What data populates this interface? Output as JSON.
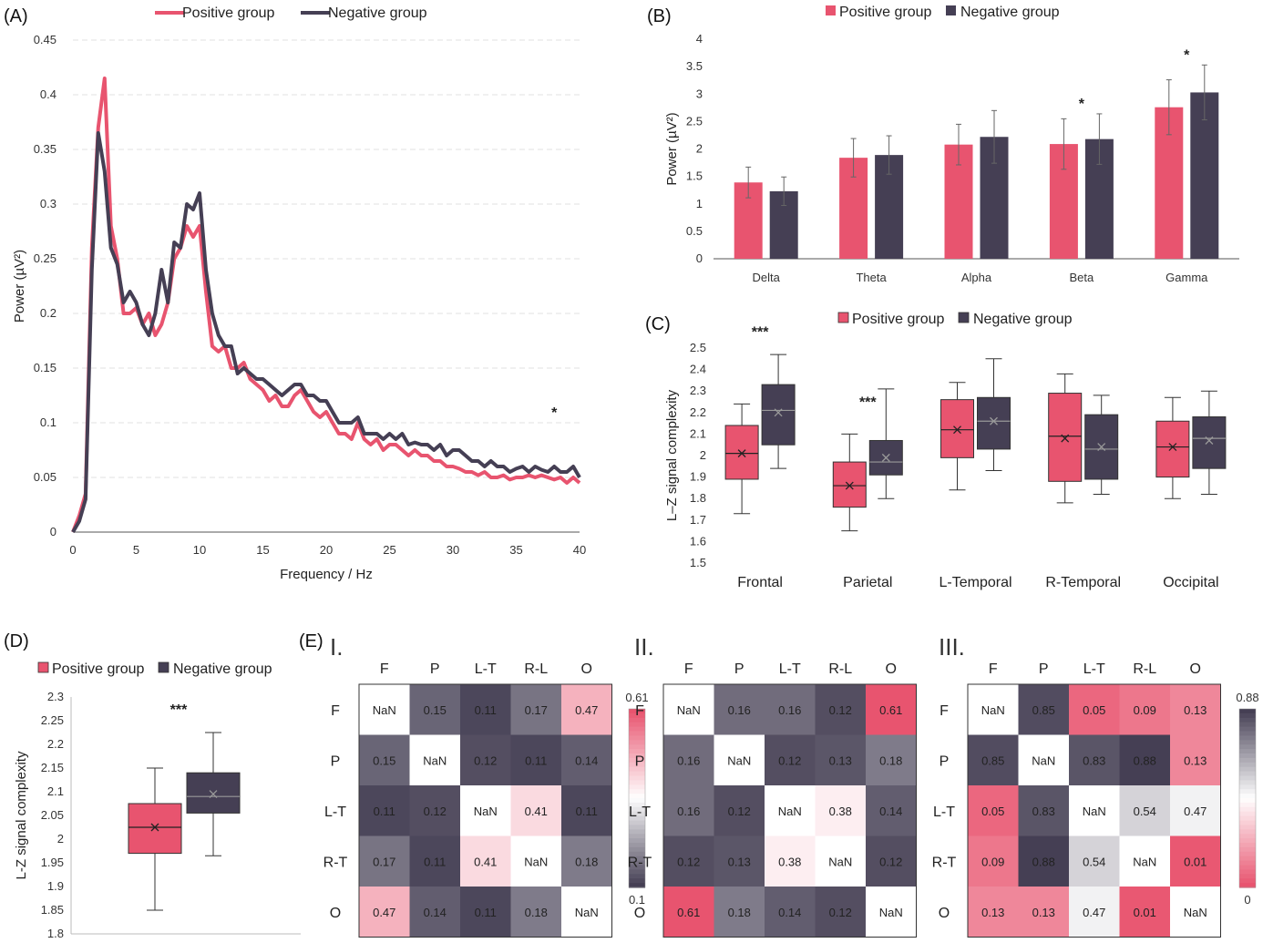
{
  "colors": {
    "positive": "#e8546f",
    "negative": "#453f54",
    "grid": "#e0e0e0",
    "axis": "#555555"
  },
  "panels": {
    "A": "(A)",
    "B": "(B)",
    "C": "(C)",
    "D": "(D)",
    "E": "(E)"
  },
  "legend": {
    "positive": "Positive group",
    "negative": "Negative group"
  },
  "chart_data": [
    {
      "id": "A",
      "type": "line",
      "xlabel": "Frequency / Hz",
      "ylabel": "Power (µV²)",
      "xlim": [
        0,
        40
      ],
      "ylim": [
        0,
        0.45
      ],
      "xticks": [
        0,
        5,
        10,
        15,
        20,
        25,
        30,
        35,
        40
      ],
      "yticks": [
        0,
        0.05,
        0.1,
        0.15,
        0.2,
        0.25,
        0.3,
        0.35,
        0.4,
        0.45
      ],
      "grid": "horizontal dashed",
      "legend": "top",
      "annotations": [
        {
          "text": "*",
          "x": 38,
          "y": 0.11
        }
      ],
      "series": [
        {
          "name": "Positive group",
          "x": [
            0,
            0.5,
            1,
            1.5,
            2,
            2.5,
            3,
            3.5,
            4,
            4.5,
            5,
            5.5,
            6,
            6.5,
            7,
            7.5,
            8,
            8.5,
            9,
            9.5,
            10,
            10.5,
            11,
            11.5,
            12,
            12.5,
            13,
            13.5,
            14,
            14.5,
            15,
            15.5,
            16,
            16.5,
            17,
            17.5,
            18,
            18.5,
            19,
            19.5,
            20,
            20.5,
            21,
            21.5,
            22,
            22.5,
            23,
            23.5,
            24,
            24.5,
            25,
            25.5,
            26,
            26.5,
            27,
            27.5,
            28,
            28.5,
            29,
            29.5,
            30,
            30.5,
            31,
            31.5,
            32,
            32.5,
            33,
            33.5,
            34,
            34.5,
            35,
            35.5,
            36,
            36.5,
            37,
            37.5,
            38,
            38.5,
            39,
            39.5,
            40
          ],
          "values": [
            0,
            0.015,
            0.035,
            0.26,
            0.37,
            0.415,
            0.28,
            0.25,
            0.2,
            0.2,
            0.205,
            0.19,
            0.2,
            0.18,
            0.19,
            0.21,
            0.25,
            0.26,
            0.28,
            0.27,
            0.28,
            0.22,
            0.17,
            0.165,
            0.17,
            0.15,
            0.15,
            0.155,
            0.14,
            0.135,
            0.13,
            0.12,
            0.125,
            0.115,
            0.115,
            0.125,
            0.13,
            0.12,
            0.11,
            0.105,
            0.11,
            0.1,
            0.09,
            0.09,
            0.085,
            0.1,
            0.085,
            0.08,
            0.085,
            0.075,
            0.08,
            0.08,
            0.075,
            0.07,
            0.075,
            0.07,
            0.07,
            0.065,
            0.065,
            0.06,
            0.06,
            0.058,
            0.055,
            0.055,
            0.052,
            0.055,
            0.05,
            0.05,
            0.052,
            0.048,
            0.05,
            0.05,
            0.052,
            0.05,
            0.052,
            0.05,
            0.048,
            0.05,
            0.045,
            0.05,
            0.045
          ]
        },
        {
          "name": "Negative group",
          "x": [
            0,
            0.5,
            1,
            1.5,
            2,
            2.5,
            3,
            3.5,
            4,
            4.5,
            5,
            5.5,
            6,
            6.5,
            7,
            7.5,
            8,
            8.5,
            9,
            9.5,
            10,
            10.5,
            11,
            11.5,
            12,
            12.5,
            13,
            13.5,
            14,
            14.5,
            15,
            15.5,
            16,
            16.5,
            17,
            17.5,
            18,
            18.5,
            19,
            19.5,
            20,
            20.5,
            21,
            21.5,
            22,
            22.5,
            23,
            23.5,
            24,
            24.5,
            25,
            25.5,
            26,
            26.5,
            27,
            27.5,
            28,
            28.5,
            29,
            29.5,
            30,
            30.5,
            31,
            31.5,
            32,
            32.5,
            33,
            33.5,
            34,
            34.5,
            35,
            35.5,
            36,
            36.5,
            37,
            37.5,
            38,
            38.5,
            39,
            39.5,
            40
          ],
          "values": [
            0,
            0.01,
            0.03,
            0.24,
            0.365,
            0.33,
            0.26,
            0.245,
            0.21,
            0.22,
            0.21,
            0.19,
            0.18,
            0.2,
            0.24,
            0.21,
            0.265,
            0.26,
            0.3,
            0.295,
            0.31,
            0.24,
            0.2,
            0.18,
            0.17,
            0.17,
            0.145,
            0.15,
            0.145,
            0.14,
            0.14,
            0.135,
            0.13,
            0.125,
            0.13,
            0.135,
            0.135,
            0.125,
            0.125,
            0.12,
            0.12,
            0.11,
            0.1,
            0.1,
            0.1,
            0.105,
            0.09,
            0.09,
            0.09,
            0.085,
            0.09,
            0.085,
            0.09,
            0.08,
            0.082,
            0.08,
            0.08,
            0.075,
            0.08,
            0.07,
            0.075,
            0.075,
            0.07,
            0.065,
            0.065,
            0.06,
            0.065,
            0.06,
            0.06,
            0.055,
            0.058,
            0.06,
            0.055,
            0.06,
            0.057,
            0.055,
            0.06,
            0.055,
            0.055,
            0.06,
            0.05
          ]
        }
      ]
    },
    {
      "id": "B",
      "type": "bar",
      "ylabel": "Power (µV²)",
      "ylim": [
        0,
        4
      ],
      "yticks": [
        0,
        0.5,
        1,
        1.5,
        2,
        2.5,
        3,
        3.5,
        4
      ],
      "categories": [
        "Delta",
        "Theta",
        "Alpha",
        "Beta",
        "Gamma"
      ],
      "legend": "top",
      "series": [
        {
          "name": "Positive group",
          "values": [
            1.39,
            1.84,
            2.08,
            2.09,
            2.76
          ],
          "err": [
            0.28,
            0.35,
            0.37,
            0.46,
            0.5
          ]
        },
        {
          "name": "Negative group",
          "values": [
            1.23,
            1.89,
            2.22,
            2.18,
            3.03
          ],
          "err": [
            0.26,
            0.35,
            0.48,
            0.46,
            0.5
          ]
        }
      ],
      "annotations": [
        {
          "text": "*",
          "category": "Beta"
        },
        {
          "text": "*",
          "category": "Gamma"
        }
      ]
    },
    {
      "id": "C",
      "type": "box",
      "ylabel": "L–Z signal complexity",
      "ylim": [
        1.5,
        2.5
      ],
      "yticks": [
        1.5,
        1.6,
        1.7,
        1.8,
        1.9,
        2,
        2.1,
        2.2,
        2.3,
        2.4,
        2.5
      ],
      "categories": [
        "Frontal",
        "Parietal",
        "L-Temporal",
        "R-Temporal",
        "Occipital"
      ],
      "legend": "top",
      "series": [
        {
          "name": "Positive group",
          "boxes": [
            {
              "min": 1.73,
              "q1": 1.89,
              "median": 2.01,
              "q3": 2.14,
              "max": 2.24,
              "mean": 2.01
            },
            {
              "min": 1.65,
              "q1": 1.76,
              "median": 1.86,
              "q3": 1.97,
              "max": 2.1,
              "mean": 1.86
            },
            {
              "min": 1.84,
              "q1": 1.99,
              "median": 2.12,
              "q3": 2.26,
              "max": 2.34,
              "mean": 2.12
            },
            {
              "min": 1.78,
              "q1": 1.88,
              "median": 2.09,
              "q3": 2.29,
              "max": 2.38,
              "mean": 2.08
            },
            {
              "min": 1.8,
              "q1": 1.9,
              "median": 2.04,
              "q3": 2.16,
              "max": 2.27,
              "mean": 2.04
            }
          ]
        },
        {
          "name": "Negative group",
          "boxes": [
            {
              "min": 1.94,
              "q1": 2.05,
              "median": 2.21,
              "q3": 2.33,
              "max": 2.47,
              "mean": 2.2
            },
            {
              "min": 1.8,
              "q1": 1.91,
              "median": 1.97,
              "q3": 2.07,
              "max": 2.31,
              "mean": 1.99
            },
            {
              "min": 1.93,
              "q1": 2.03,
              "median": 2.16,
              "q3": 2.27,
              "max": 2.45,
              "mean": 2.16
            },
            {
              "min": 1.82,
              "q1": 1.89,
              "median": 2.03,
              "q3": 2.19,
              "max": 2.28,
              "mean": 2.04
            },
            {
              "min": 1.82,
              "q1": 1.94,
              "median": 2.08,
              "q3": 2.18,
              "max": 2.3,
              "mean": 2.07
            }
          ]
        }
      ],
      "annotations": [
        {
          "text": "***",
          "category": "Frontal"
        },
        {
          "text": "***",
          "category": "Parietal"
        }
      ]
    },
    {
      "id": "D",
      "type": "box",
      "ylabel": "L-Z signal complexity",
      "ylim": [
        1.8,
        2.3
      ],
      "yticks": [
        1.8,
        1.85,
        1.9,
        1.95,
        2,
        2.05,
        2.1,
        2.15,
        2.2,
        2.25,
        2.3
      ],
      "legend": "top",
      "series": [
        {
          "name": "Positive group",
          "box": {
            "min": 1.85,
            "q1": 1.97,
            "median": 2.025,
            "q3": 2.075,
            "max": 2.15,
            "mean": 2.025
          }
        },
        {
          "name": "Negative group",
          "box": {
            "min": 1.965,
            "q1": 2.055,
            "median": 2.09,
            "q3": 2.14,
            "max": 2.225,
            "mean": 2.095
          }
        }
      ],
      "annotations": [
        {
          "text": "***"
        }
      ]
    },
    {
      "id": "E-I",
      "type": "heatmap",
      "title": "I.",
      "rows": [
        "F",
        "P",
        "L-T",
        "R-T",
        "O"
      ],
      "cols": [
        "F",
        "P",
        "L-T",
        "R-L",
        "O"
      ],
      "colorbar": {
        "max": 0.61,
        "min": 0.1,
        "max_label": "0.61",
        "min_label": "0.1"
      },
      "values": [
        [
          "NaN",
          "0.15",
          "0.11",
          "0.17",
          "0.47"
        ],
        [
          "0.15",
          "NaN",
          "0.12",
          "0.11",
          "0.14"
        ],
        [
          "0.11",
          "0.12",
          "NaN",
          "0.41",
          "0.11"
        ],
        [
          "0.17",
          "0.11",
          "0.41",
          "NaN",
          "0.18"
        ],
        [
          "0.47",
          "0.14",
          "0.11",
          "0.18",
          "NaN"
        ]
      ]
    },
    {
      "id": "E-II",
      "type": "heatmap",
      "title": "II.",
      "rows": [
        "F",
        "P",
        "L-T",
        "R-T",
        "O"
      ],
      "cols": [
        "F",
        "P",
        "L-T",
        "R-L",
        "O"
      ],
      "colorbar": {
        "max": 0.61,
        "min": 0.1
      },
      "values": [
        [
          "NaN",
          "0.16",
          "0.16",
          "0.12",
          "0.61"
        ],
        [
          "0.16",
          "NaN",
          "0.12",
          "0.13",
          "0.18"
        ],
        [
          "0.16",
          "0.12",
          "NaN",
          "0.38",
          "0.14"
        ],
        [
          "0.12",
          "0.13",
          "0.38",
          "NaN",
          "0.12"
        ],
        [
          "0.61",
          "0.18",
          "0.14",
          "0.12",
          "NaN"
        ]
      ]
    },
    {
      "id": "E-III",
      "type": "heatmap",
      "title": "III.",
      "rows": [
        "F",
        "P",
        "L-T",
        "R-T",
        "O"
      ],
      "cols": [
        "F",
        "P",
        "L-T",
        "R-L",
        "O"
      ],
      "colorbar": {
        "max": 0.88,
        "min": 0,
        "max_label": "0.88",
        "min_label": "0"
      },
      "values": [
        [
          "NaN",
          "0.85",
          "0.05",
          "0.09",
          "0.13"
        ],
        [
          "0.85",
          "NaN",
          "0.83",
          "0.88",
          "0.13"
        ],
        [
          "0.05",
          "0.83",
          "NaN",
          "0.54",
          "0.47"
        ],
        [
          "0.09",
          "0.88",
          "0.54",
          "NaN",
          "0.01"
        ],
        [
          "0.13",
          "0.13",
          "0.47",
          "0.01",
          "NaN"
        ]
      ]
    }
  ]
}
